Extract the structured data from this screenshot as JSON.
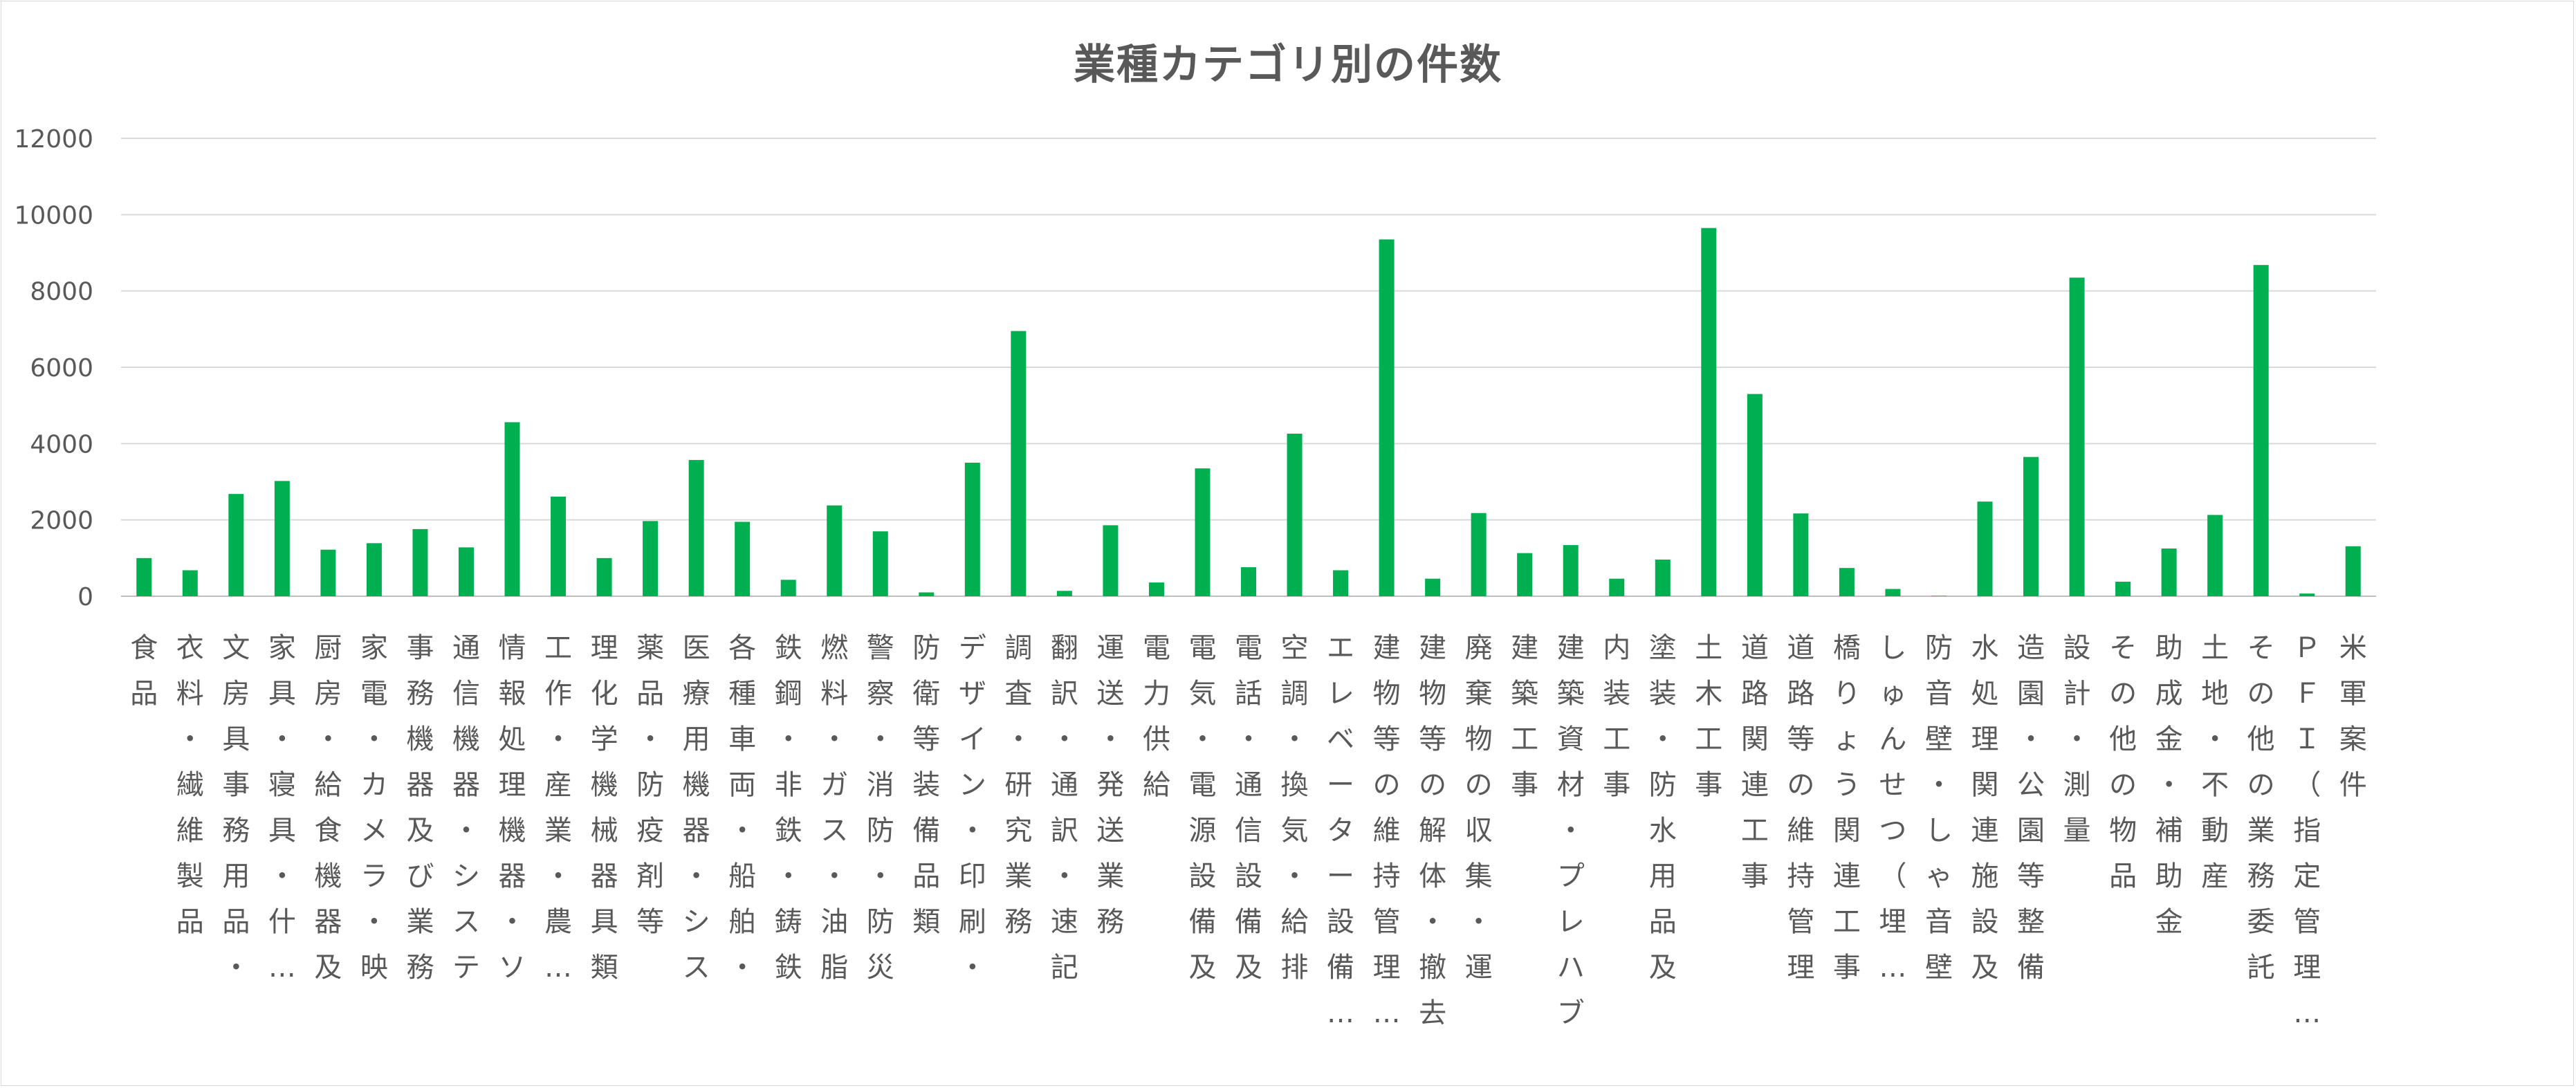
{
  "chart_data": {
    "type": "bar",
    "title": "業種カテゴリ別の件数",
    "xlabel": "",
    "ylabel": "",
    "ylim": [
      0,
      12000
    ],
    "yticks": [
      0,
      2000,
      4000,
      6000,
      8000,
      10000,
      12000
    ],
    "grid": true,
    "legend": "none",
    "bar_color": "#00b050",
    "categories": [
      "食品",
      "衣料・繊維製品",
      "文房具事務用品・",
      "家具・寝具・什…",
      "厨房・給食機器及",
      "家電・カメラ・映",
      "事務機器及び業務",
      "通信機器・システ",
      "情報処理機器・ソ",
      "工作・産業・農…",
      "理化学機械器具類",
      "薬品・防疫剤等",
      "医療用機器・シス",
      "各種車両・船舶・",
      "鉄鋼・非鉄・鋳鉄",
      "燃料・ガス・油脂",
      "警察・消防・防災",
      "防衛等装備品類",
      "デザイン・印刷・",
      "調査・研究業務",
      "翻訳・通訳・速記",
      "運送・発送業務",
      "電力供給",
      "電気・電源設備及",
      "電話・通信設備及",
      "空調・換気・給排",
      "エレベーター設備…",
      "建物等の維持管理…",
      "建物等の解体・撤去",
      "廃棄物の収集・運",
      "建築工事",
      "建築資材・プレハブ",
      "内装工事",
      "塗装・防水用品及",
      "土木工事",
      "道路関連工事",
      "道路等の維持管理",
      "橋りょう関連工事",
      "しゅんせつ（埋…",
      "防音壁・しゃ音壁",
      "水処理関連施設及",
      "造園・公園等整備",
      "設計・測量",
      "その他の物品",
      "助成金・補助金",
      "土地・不動産",
      "その他の業務委託",
      "ＰＦＩ（指定管理…",
      "米軍案件"
    ],
    "values": [
      1000,
      680,
      2680,
      3020,
      1220,
      1390,
      1760,
      1280,
      4560,
      2610,
      1000,
      1970,
      3570,
      1950,
      430,
      2380,
      1700,
      100,
      3500,
      6950,
      140,
      1860,
      360,
      3350,
      760,
      4260,
      680,
      9350,
      460,
      2180,
      1130,
      1340,
      460,
      960,
      9650,
      5300,
      2170,
      740,
      190,
      10,
      2480,
      3650,
      8350,
      380,
      1250,
      2130,
      8680,
      70,
      1310
    ]
  }
}
